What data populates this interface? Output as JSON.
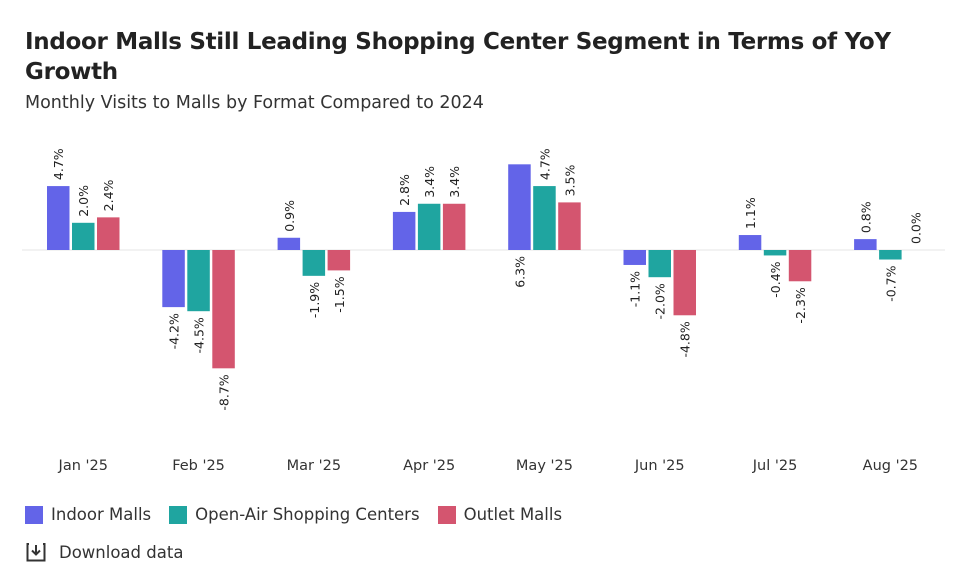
{
  "header": {
    "title": "Indoor Malls Still Leading Shopping Center Segment in Terms of YoY Growth",
    "subtitle": "Monthly Visits to Malls by Format Compared to 2024"
  },
  "download": {
    "label": "Download data",
    "icon": "download-icon"
  },
  "chart_data": {
    "type": "bar",
    "title": "Indoor Malls Still Leading Shopping Center Segment in Terms of YoY Growth",
    "subtitle": "Monthly Visits to Malls by Format Compared to 2024",
    "categories": [
      "Jan '25",
      "Feb '25",
      "Mar '25",
      "Apr '25",
      "May '25",
      "Jun '25",
      "Jul '25",
      "Aug '25"
    ],
    "series": [
      {
        "name": "Indoor Malls",
        "color": "#6364e8",
        "values": [
          4.7,
          -4.2,
          0.9,
          2.8,
          6.3,
          -1.1,
          1.1,
          0.8
        ],
        "labels": [
          "4.7%",
          "-4.2%",
          "0.9%",
          "2.8%",
          "6.3%",
          "-1.1%",
          "1.1%",
          "0.8%"
        ]
      },
      {
        "name": "Open-Air Shopping Centers",
        "color": "#1fa5a0",
        "values": [
          2.0,
          -4.5,
          -1.9,
          3.4,
          4.7,
          -2.0,
          -0.4,
          -0.7
        ],
        "labels": [
          "2.0%",
          "-4.5%",
          "-1.9%",
          "3.4%",
          "4.7%",
          "-2.0%",
          "-0.4%",
          "-0.7%"
        ]
      },
      {
        "name": "Outlet Malls",
        "color": "#d4556f",
        "values": [
          2.4,
          -8.7,
          -1.5,
          3.4,
          3.5,
          -4.8,
          -2.3,
          0.0
        ],
        "labels": [
          "2.4%",
          "-8.7%",
          "-1.5%",
          "3.4%",
          "3.5%",
          "-4.8%",
          "-2.3%",
          "0.0%"
        ]
      }
    ],
    "xlabel": "",
    "ylabel": "",
    "ylim": [
      -10,
      6.5
    ],
    "grid": false,
    "legend": "bottom-left"
  }
}
